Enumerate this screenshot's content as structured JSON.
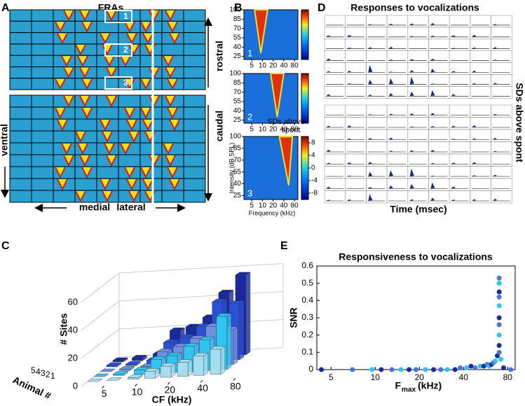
{
  "panel_labels": [
    "A",
    "B",
    "C",
    "D",
    "E"
  ],
  "panel_a": {
    "title": "FRAs",
    "box_labels": [
      "1",
      "2",
      "3"
    ],
    "rostral": "rostral",
    "caudal": "caudal",
    "ventral": "ventral",
    "medial": "medial",
    "lateral": "lateral"
  },
  "panel_b": {
    "ylim": [
      20,
      100
    ],
    "yticks": [
      25,
      40,
      55,
      70,
      85,
      100
    ],
    "xlim": [
      3,
      100
    ],
    "xticks": [
      5,
      10,
      20,
      40,
      80
    ],
    "log_x": true,
    "inset_labels": [
      "1",
      "2",
      "3"
    ],
    "ylabel": "Intensity (dB SPL)",
    "xlabel": "Frequency (kHz)",
    "colorbar_title": [
      "SDs above",
      "spont"
    ],
    "colorbar_lim": [
      -10,
      10
    ],
    "colorbar_ticks": [
      8,
      4,
      0,
      -4,
      -8
    ]
  },
  "panel_d": {
    "title": "Responses to vocalizations",
    "ylabel": "SDs above spont",
    "xlabel": "Time (msec)"
  },
  "chart_data": [
    {
      "type": "bar3d",
      "zlabel": "# Sites",
      "xlabel": "CF (kHz)",
      "ylabel": "Animal #",
      "x": [
        3,
        4.5,
        7,
        10,
        14,
        20,
        28,
        40
      ],
      "log_x": true,
      "xticks": [
        5,
        10,
        20,
        40,
        80
      ],
      "zlim": [
        0,
        60
      ],
      "zticks": [
        0,
        20,
        40,
        60
      ],
      "yticks": [
        5,
        4,
        3,
        2,
        1
      ],
      "series": [
        {
          "color": "#a8ddf0",
          "values": [
            0,
            0,
            1,
            5,
            8,
            10,
            14,
            18
          ]
        },
        {
          "color": "#2ec6f0",
          "values": [
            0,
            1,
            3,
            10,
            12,
            18,
            22,
            38
          ]
        },
        {
          "color": "#6f8fe0",
          "values": [
            0,
            1,
            2,
            12,
            15,
            20,
            28,
            25
          ]
        },
        {
          "color": "#2b50d8",
          "values": [
            1,
            1,
            3,
            15,
            18,
            25,
            42,
            40
          ]
        },
        {
          "color": "#1a2a9c",
          "values": [
            1,
            2,
            4,
            20,
            22,
            28,
            45,
            57
          ]
        }
      ]
    },
    {
      "type": "scatter",
      "title": "Responsiveness to vocalizations",
      "ylabel": "SNR",
      "xlabel_main": "F",
      "xlabel_sub": "max",
      "xlabel_unit": "(kHz)",
      "log_x": true,
      "xlim": [
        4,
        90
      ],
      "xticks": [
        5,
        10,
        20,
        40,
        80
      ],
      "ylim": [
        0,
        0.6
      ],
      "yticks": [
        0,
        0.1,
        0.2,
        0.3,
        0.4,
        0.5,
        0.6
      ],
      "colors": [
        "#1a2a9c",
        "#4a74d8",
        "#2ec6f0"
      ],
      "x": [
        4.3,
        7,
        9.5,
        11,
        13,
        15,
        17,
        19,
        22,
        25,
        28,
        31,
        35,
        38,
        42,
        45,
        48,
        52,
        55,
        58,
        60,
        62,
        64,
        66,
        68,
        70,
        70,
        70,
        70,
        70,
        70,
        70,
        70,
        70,
        70,
        72,
        75,
        84
      ],
      "y": [
        0,
        0,
        0,
        0,
        0,
        0,
        0,
        0,
        0,
        0,
        0,
        0,
        0,
        0.01,
        0.01,
        0.02,
        0.01,
        0.02,
        0.02,
        0.03,
        0.02,
        0.03,
        0.04,
        0.05,
        0.08,
        0.53,
        0.5,
        0.45,
        0.42,
        0.37,
        0.3,
        0.26,
        0.2,
        0.14,
        0.1,
        0.06,
        0.01,
        0
      ]
    }
  ]
}
